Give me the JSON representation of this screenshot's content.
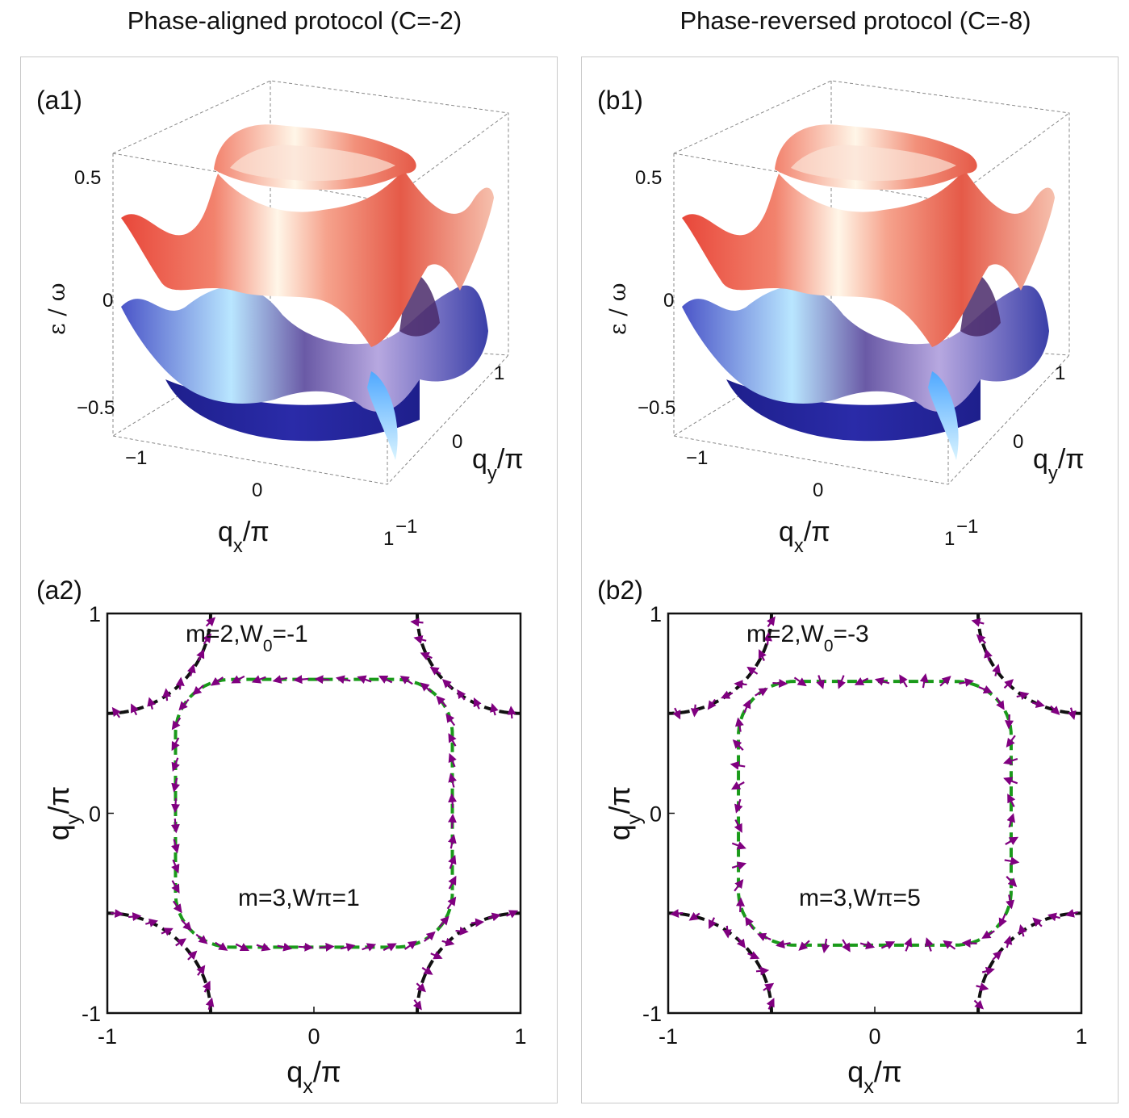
{
  "columns": [
    {
      "title": "Phase-aligned protocol (C=-2)"
    },
    {
      "title": "Phase-reversed protocol (C=-8)"
    }
  ],
  "chart_data": [
    {
      "panel": "(a1)",
      "type": "surface3d",
      "zlabel": "ε / ω",
      "xlabel": "qx/π",
      "ylabel": "qy/π",
      "z_ticks": [
        "0.5",
        "0",
        "−0.5"
      ],
      "x_ticks": [
        "−1",
        "0",
        "1"
      ],
      "y_ticks": [
        "−1",
        "0",
        "1"
      ],
      "bands": [
        {
          "name": "upper",
          "color_low": "#e8473a",
          "color_high": "#fff6e8"
        },
        {
          "name": "lower",
          "color_low": "#1e1f8c",
          "color_high": "#b9e6ff"
        }
      ]
    },
    {
      "panel": "(b1)",
      "type": "surface3d",
      "zlabel": "ε / ω",
      "xlabel": "qx/π",
      "ylabel": "qy/π",
      "z_ticks": [
        "0.5",
        "0",
        "−0.5"
      ],
      "x_ticks": [
        "−1",
        "0",
        "1"
      ],
      "y_ticks": [
        "−1",
        "0",
        "1"
      ],
      "bands": [
        {
          "name": "upper",
          "color_low": "#e8473a",
          "color_high": "#fff6e8"
        },
        {
          "name": "lower",
          "color_low": "#1e1f8c",
          "color_high": "#b9e6ff"
        }
      ]
    },
    {
      "panel": "(a2)",
      "type": "scatter",
      "xlabel": "qx/π",
      "ylabel": "qy/π",
      "xlim": [
        -1,
        1
      ],
      "ylim": [
        -1,
        1
      ],
      "x_ticks": [
        "-1",
        "0",
        "1"
      ],
      "y_ticks": [
        "-1",
        "0",
        "1"
      ],
      "annotations": [
        {
          "text": "m=2,W",
          "sub": "0",
          "tail": "=-1"
        },
        {
          "text": "m=3,Wπ=1",
          "sub": "",
          "tail": ""
        }
      ],
      "inner_contour": {
        "color": "#1a9a1a",
        "half_size": 0.67,
        "corner_radius": 0.27
      },
      "corner_contour": {
        "color": "#111111",
        "radius": 0.5
      },
      "arrow_color": "#800080",
      "arrows_per_side": 9,
      "winding_inner": 1,
      "winding_corner": -1
    },
    {
      "panel": "(b2)",
      "type": "scatter",
      "xlabel": "qx/π",
      "ylabel": "qy/π",
      "xlim": [
        -1,
        1
      ],
      "ylim": [
        -1,
        1
      ],
      "x_ticks": [
        "-1",
        "0",
        "1"
      ],
      "y_ticks": [
        "-1",
        "0",
        "1"
      ],
      "annotations": [
        {
          "text": "m=2,W",
          "sub": "0",
          "tail": "=-3"
        },
        {
          "text": "m=3,Wπ=5",
          "sub": "",
          "tail": ""
        }
      ],
      "inner_contour": {
        "color": "#1a9a1a",
        "half_size": 0.66,
        "corner_radius": 0.27
      },
      "corner_contour": {
        "color": "#111111",
        "radius": 0.5
      },
      "arrow_color": "#800080",
      "arrows_per_side": 9,
      "winding_inner": 5,
      "winding_corner": -3
    }
  ]
}
